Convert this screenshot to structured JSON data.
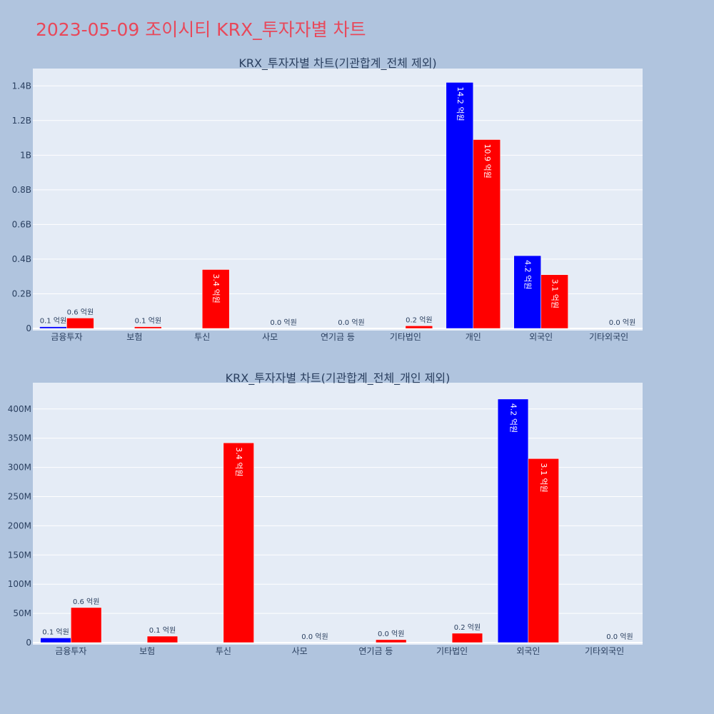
{
  "page": {
    "title": "2023-05-09 조이시티 KRX_투자자별 차트"
  },
  "colors": {
    "background": "#b0c4de",
    "plot_background": "#e5ecf6",
    "title": "#e8485a",
    "buy": "#0000ff",
    "sell": "#ff0000",
    "text": "#2a3f5f"
  },
  "chart_data": [
    {
      "type": "bar",
      "title": "KRX_투자자별 차트(기관합계_전체 제외)",
      "categories": [
        "금융투자",
        "보험",
        "투신",
        "사모",
        "연기금 등",
        "기타법인",
        "개인",
        "외국인",
        "기타외국인"
      ],
      "series": [
        {
          "color": "#0000ff",
          "values": [
            10000000,
            0,
            0,
            0,
            0,
            0,
            1420000000,
            420000000,
            0
          ],
          "labels": [
            "0.1 억원",
            "",
            "",
            "",
            "",
            "",
            "14.2 억원",
            "4.2 억원",
            ""
          ]
        },
        {
          "color": "#ff0000",
          "values": [
            60000000,
            10000000,
            340000000,
            0,
            1000000,
            15000000,
            1090000000,
            310000000,
            0
          ],
          "labels": [
            "0.6 억원",
            "0.1 억원",
            "3.4 억원",
            "0.0 억원",
            "0.0 억원",
            "0.2 억원",
            "10.9 억원",
            "3.1 억원",
            "0.0 억원"
          ]
        }
      ],
      "ylim": [
        0,
        1500000000
      ],
      "yticks": [
        0,
        200000000,
        400000000,
        600000000,
        800000000,
        1000000000,
        1200000000,
        1400000000
      ],
      "ytick_labels": [
        "0",
        "0.2B",
        "0.4B",
        "0.6B",
        "0.8B",
        "1B",
        "1.2B",
        "1.4B"
      ],
      "grid": true
    },
    {
      "type": "bar",
      "title": "KRX_투자자별 차트(기관합계_전체_개인 제외)",
      "categories": [
        "금융투자",
        "보험",
        "투신",
        "사모",
        "연기금 등",
        "기타법인",
        "외국인",
        "기타외국인"
      ],
      "series": [
        {
          "color": "#0000ff",
          "values": [
            8000000,
            0,
            0,
            0,
            0,
            0,
            417000000,
            0
          ],
          "labels": [
            "0.1 억원",
            "",
            "",
            "",
            "",
            "",
            "4.2 억원",
            ""
          ]
        },
        {
          "color": "#ff0000",
          "values": [
            60000000,
            11000000,
            342000000,
            0,
            5000000,
            16000000,
            315000000,
            0
          ],
          "labels": [
            "0.6 억원",
            "0.1 억원",
            "3.4 억원",
            "0.0 억원",
            "0.0 억원",
            "0.2 억원",
            "3.1 억원",
            "0.0 억원"
          ]
        }
      ],
      "ylim": [
        0,
        445000000
      ],
      "yticks": [
        0,
        50000000,
        100000000,
        150000000,
        200000000,
        250000000,
        300000000,
        350000000,
        400000000
      ],
      "ytick_labels": [
        "0",
        "50M",
        "100M",
        "150M",
        "200M",
        "250M",
        "300M",
        "350M",
        "400M"
      ],
      "grid": true
    }
  ]
}
